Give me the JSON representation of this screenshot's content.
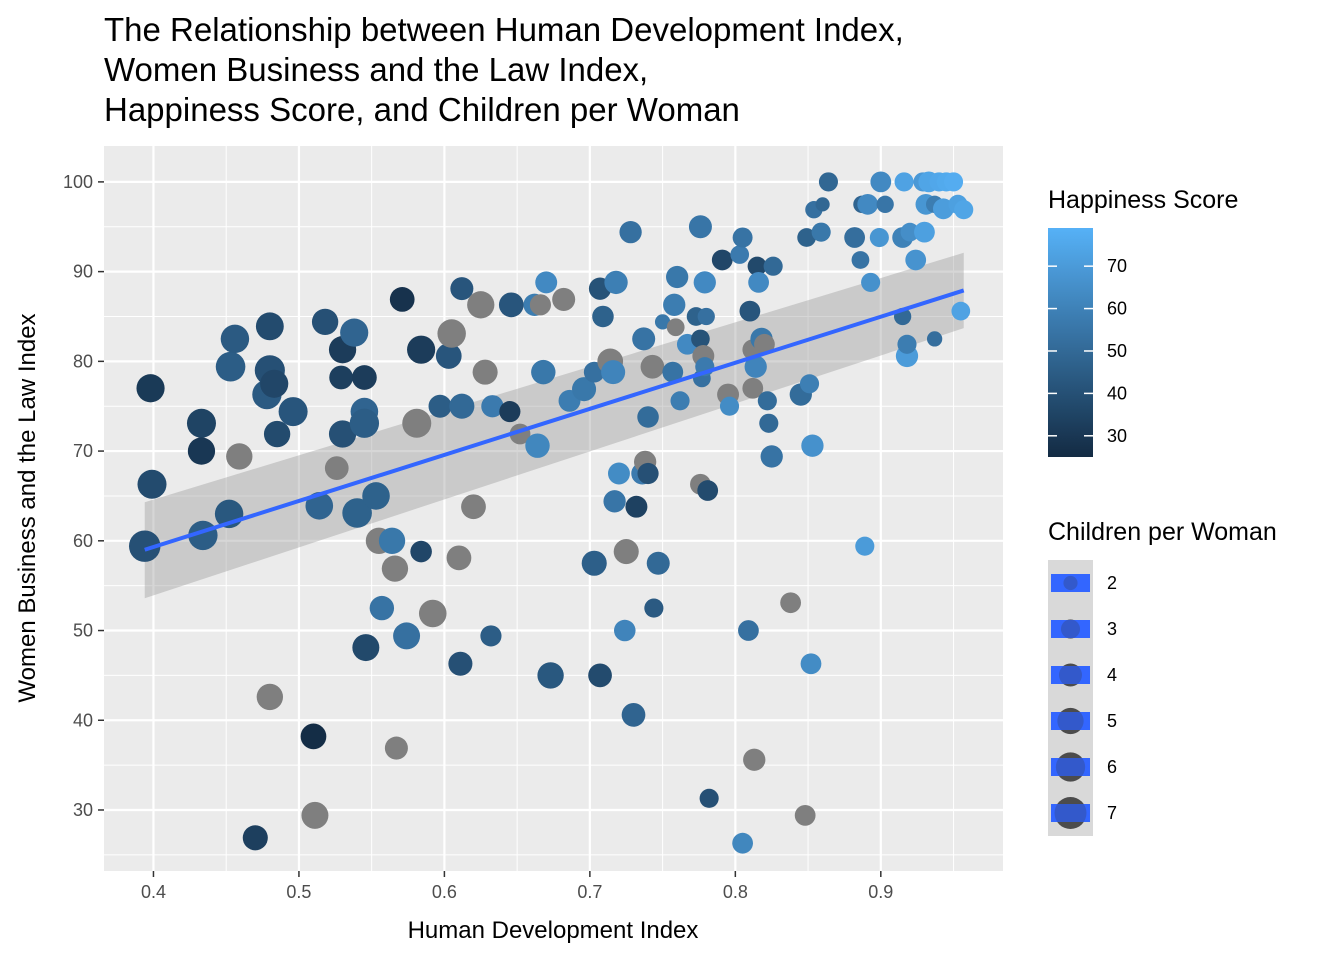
{
  "chart_data": {
    "type": "scatter",
    "title_lines": [
      "The Relationship between Human Development Index,",
      "Women Business and the Law Index,",
      "Happiness Score, and Children per Woman"
    ],
    "xlabel": "Human Development Index",
    "ylabel": "Women Business and the Law Index",
    "xlim": [
      0.366,
      0.984
    ],
    "ylim": [
      23.2,
      104.0
    ],
    "x_ticks": [
      0.4,
      0.5,
      0.6,
      0.7,
      0.8,
      0.9
    ],
    "x_tick_labels": [
      "0.4",
      "0.5",
      "0.6",
      "0.7",
      "0.8",
      "0.9"
    ],
    "y_ticks": [
      30,
      40,
      50,
      60,
      70,
      80,
      90,
      100
    ],
    "y_tick_labels": [
      "30",
      "40",
      "50",
      "60",
      "70",
      "80",
      "90",
      "100"
    ],
    "grid": true,
    "panel_background": "#ebebeb",
    "missing_color": "#7f7f7f",
    "color_scale": {
      "title": "Happiness Score",
      "low": "#132b43",
      "high": "#56b1f7",
      "limits": [
        25,
        79
      ],
      "breaks": [
        30,
        40,
        50,
        60,
        70
      ],
      "break_labels": [
        "30",
        "40",
        "50",
        "60",
        "70"
      ]
    },
    "size_scale": {
      "title": "Children per Woman",
      "limits": [
        1.0,
        7.0
      ],
      "breaks": [
        2,
        3,
        4,
        5,
        6,
        7
      ],
      "break_labels": [
        "2",
        "3",
        "4",
        "5",
        "6",
        "7"
      ]
    },
    "trend_line": {
      "x": [
        0.394,
        0.957
      ],
      "y": [
        59.0,
        87.9
      ],
      "ci_lower": [
        53.6,
        83.7
      ],
      "ci_upper": [
        64.3,
        92.1
      ],
      "color": "#3366ff",
      "band_color": "#999999"
    },
    "points": [
      {
        "x": 0.394,
        "y": 59.4,
        "size": 6.8,
        "happiness": 40
      },
      {
        "x": 0.398,
        "y": 77.0,
        "size": 5.6,
        "happiness": 31
      },
      {
        "x": 0.399,
        "y": 66.3,
        "size": 5.9,
        "happiness": 38
      },
      {
        "x": 0.433,
        "y": 73.1,
        "size": 5.9,
        "happiness": 35
      },
      {
        "x": 0.433,
        "y": 70.0,
        "size": 5.3,
        "happiness": 30
      },
      {
        "x": 0.434,
        "y": 60.6,
        "size": 6.0,
        "happiness": 45
      },
      {
        "x": 0.452,
        "y": 63.0,
        "size": 5.7,
        "happiness": 43
      },
      {
        "x": 0.453,
        "y": 79.4,
        "size": 6.1,
        "happiness": 45
      },
      {
        "x": 0.456,
        "y": 82.5,
        "size": 5.7,
        "happiness": 44
      },
      {
        "x": 0.459,
        "y": 69.4,
        "size": 5.0,
        "happiness": null
      },
      {
        "x": 0.478,
        "y": 76.3,
        "size": 6.0,
        "happiness": 44
      },
      {
        "x": 0.48,
        "y": 79.0,
        "size": 6.3,
        "happiness": 40
      },
      {
        "x": 0.48,
        "y": 83.9,
        "size": 5.5,
        "happiness": 38
      },
      {
        "x": 0.48,
        "y": 42.6,
        "size": 5.0,
        "happiness": null
      },
      {
        "x": 0.483,
        "y": 77.5,
        "size": 5.6,
        "happiness": 36
      },
      {
        "x": 0.485,
        "y": 71.9,
        "size": 5.0,
        "happiness": 38
      },
      {
        "x": 0.496,
        "y": 74.4,
        "size": 5.9,
        "happiness": 42
      },
      {
        "x": 0.47,
        "y": 26.9,
        "size": 4.6,
        "happiness": 33
      },
      {
        "x": 0.51,
        "y": 38.2,
        "size": 4.8,
        "happiness": 26
      },
      {
        "x": 0.511,
        "y": 29.4,
        "size": 5.2,
        "happiness": null
      },
      {
        "x": 0.514,
        "y": 63.9,
        "size": 5.4,
        "happiness": 48
      },
      {
        "x": 0.518,
        "y": 84.4,
        "size": 5.0,
        "happiness": 40
      },
      {
        "x": 0.526,
        "y": 68.1,
        "size": 4.2,
        "happiness": null
      },
      {
        "x": 0.53,
        "y": 81.3,
        "size": 5.3,
        "happiness": 32
      },
      {
        "x": 0.529,
        "y": 78.2,
        "size": 4.2,
        "happiness": 33
      },
      {
        "x": 0.53,
        "y": 71.9,
        "size": 5.3,
        "happiness": 40
      },
      {
        "x": 0.538,
        "y": 83.2,
        "size": 5.6,
        "happiness": 48
      },
      {
        "x": 0.54,
        "y": 63.1,
        "size": 6.1,
        "happiness": 47
      },
      {
        "x": 0.545,
        "y": 78.2,
        "size": 4.5,
        "happiness": 32
      },
      {
        "x": 0.545,
        "y": 74.4,
        "size": 5.4,
        "happiness": 48
      },
      {
        "x": 0.545,
        "y": 73.1,
        "size": 6.0,
        "happiness": 45
      },
      {
        "x": 0.546,
        "y": 48.1,
        "size": 5.2,
        "happiness": 37
      },
      {
        "x": 0.553,
        "y": 65.0,
        "size": 5.4,
        "happiness": 47
      },
      {
        "x": 0.555,
        "y": 60.0,
        "size": 5.0,
        "happiness": null
      },
      {
        "x": 0.557,
        "y": 52.5,
        "size": 4.4,
        "happiness": 54
      },
      {
        "x": 0.564,
        "y": 60.0,
        "size": 5.0,
        "happiness": 56
      },
      {
        "x": 0.566,
        "y": 56.9,
        "size": 5.0,
        "happiness": null
      },
      {
        "x": 0.567,
        "y": 36.9,
        "size": 4.0,
        "happiness": null
      },
      {
        "x": 0.571,
        "y": 86.9,
        "size": 4.5,
        "happiness": 28
      },
      {
        "x": 0.574,
        "y": 49.4,
        "size": 5.2,
        "happiness": 53
      },
      {
        "x": 0.581,
        "y": 73.1,
        "size": 5.9,
        "happiness": null
      },
      {
        "x": 0.584,
        "y": 81.3,
        "size": 5.6,
        "happiness": 32
      },
      {
        "x": 0.584,
        "y": 58.8,
        "size": 3.6,
        "happiness": 36
      },
      {
        "x": 0.592,
        "y": 51.9,
        "size": 5.4,
        "happiness": null
      },
      {
        "x": 0.597,
        "y": 75.0,
        "size": 4.0,
        "happiness": 45
      },
      {
        "x": 0.603,
        "y": 80.6,
        "size": 4.8,
        "happiness": 42
      },
      {
        "x": 0.605,
        "y": 83.1,
        "size": 5.7,
        "happiness": null
      },
      {
        "x": 0.61,
        "y": 58.1,
        "size": 4.5,
        "happiness": null
      },
      {
        "x": 0.611,
        "y": 46.3,
        "size": 4.3,
        "happiness": 40
      },
      {
        "x": 0.612,
        "y": 75.0,
        "size": 4.6,
        "happiness": 50
      },
      {
        "x": 0.612,
        "y": 88.1,
        "size": 4.0,
        "happiness": 42
      },
      {
        "x": 0.62,
        "y": 63.8,
        "size": 4.5,
        "happiness": null
      },
      {
        "x": 0.625,
        "y": 86.3,
        "size": 5.3,
        "happiness": null
      },
      {
        "x": 0.628,
        "y": 78.8,
        "size": 4.6,
        "happiness": null
      },
      {
        "x": 0.632,
        "y": 49.4,
        "size": 3.5,
        "happiness": 45
      },
      {
        "x": 0.633,
        "y": 75.0,
        "size": 3.8,
        "happiness": 57
      },
      {
        "x": 0.645,
        "y": 74.4,
        "size": 3.5,
        "happiness": 32
      },
      {
        "x": 0.646,
        "y": 86.3,
        "size": 4.5,
        "happiness": 42
      },
      {
        "x": 0.652,
        "y": 71.9,
        "size": 3.4,
        "happiness": null
      },
      {
        "x": 0.662,
        "y": 86.3,
        "size": 3.8,
        "happiness": 58
      },
      {
        "x": 0.664,
        "y": 70.6,
        "size": 4.4,
        "happiness": 62
      },
      {
        "x": 0.666,
        "y": 86.3,
        "size": 3.5,
        "happiness": null
      },
      {
        "x": 0.668,
        "y": 78.8,
        "size": 4.4,
        "happiness": 56
      },
      {
        "x": 0.67,
        "y": 88.8,
        "size": 3.7,
        "happiness": 63
      },
      {
        "x": 0.673,
        "y": 45.0,
        "size": 5.0,
        "happiness": 43
      },
      {
        "x": 0.682,
        "y": 86.9,
        "size": 4.0,
        "happiness": null
      },
      {
        "x": 0.686,
        "y": 75.6,
        "size": 3.7,
        "happiness": 58
      },
      {
        "x": 0.696,
        "y": 76.9,
        "size": 4.3,
        "happiness": 56
      },
      {
        "x": 0.703,
        "y": 57.5,
        "size": 4.6,
        "happiness": 46
      },
      {
        "x": 0.703,
        "y": 78.8,
        "size": 3.4,
        "happiness": 53
      },
      {
        "x": 0.707,
        "y": 45.0,
        "size": 4.2,
        "happiness": 38
      },
      {
        "x": 0.707,
        "y": 88.1,
        "size": 3.8,
        "happiness": 41
      },
      {
        "x": 0.709,
        "y": 85.0,
        "size": 3.6,
        "happiness": 47
      },
      {
        "x": 0.714,
        "y": 80.0,
        "size": 4.8,
        "happiness": null
      },
      {
        "x": 0.716,
        "y": 78.8,
        "size": 4.3,
        "happiness": 61
      },
      {
        "x": 0.718,
        "y": 88.8,
        "size": 4.1,
        "happiness": 59
      },
      {
        "x": 0.717,
        "y": 64.4,
        "size": 3.8,
        "happiness": 55
      },
      {
        "x": 0.72,
        "y": 67.5,
        "size": 3.7,
        "happiness": 64
      },
      {
        "x": 0.724,
        "y": 50.0,
        "size": 3.6,
        "happiness": 61
      },
      {
        "x": 0.725,
        "y": 58.8,
        "size": 4.6,
        "happiness": null
      },
      {
        "x": 0.728,
        "y": 94.4,
        "size": 3.8,
        "happiness": 53
      },
      {
        "x": 0.73,
        "y": 40.6,
        "size": 4.2,
        "happiness": 48
      },
      {
        "x": 0.732,
        "y": 63.8,
        "size": 3.7,
        "happiness": 34
      },
      {
        "x": 0.736,
        "y": 67.5,
        "size": 3.7,
        "happiness": 57
      },
      {
        "x": 0.737,
        "y": 82.5,
        "size": 4.0,
        "happiness": 54
      },
      {
        "x": 0.738,
        "y": 68.8,
        "size": 3.8,
        "happiness": null
      },
      {
        "x": 0.74,
        "y": 73.8,
        "size": 3.6,
        "happiness": 51
      },
      {
        "x": 0.74,
        "y": 67.5,
        "size": 3.5,
        "happiness": 40
      },
      {
        "x": 0.743,
        "y": 79.4,
        "size": 4.2,
        "happiness": null
      },
      {
        "x": 0.744,
        "y": 52.5,
        "size": 3.0,
        "happiness": 44
      },
      {
        "x": 0.747,
        "y": 57.5,
        "size": 4.0,
        "happiness": 50
      },
      {
        "x": 0.75,
        "y": 84.4,
        "size": 2.2,
        "happiness": 56
      },
      {
        "x": 0.757,
        "y": 78.8,
        "size": 3.4,
        "happiness": 54
      },
      {
        "x": 0.758,
        "y": 86.3,
        "size": 3.8,
        "happiness": 58
      },
      {
        "x": 0.759,
        "y": 83.8,
        "size": 2.7,
        "happiness": null
      },
      {
        "x": 0.76,
        "y": 89.4,
        "size": 3.8,
        "happiness": 56
      },
      {
        "x": 0.762,
        "y": 75.6,
        "size": 3.0,
        "happiness": 58
      },
      {
        "x": 0.767,
        "y": 81.9,
        "size": 3.4,
        "happiness": 63
      },
      {
        "x": 0.773,
        "y": 85.0,
        "size": 2.9,
        "happiness": 47
      },
      {
        "x": 0.776,
        "y": 95.0,
        "size": 4.0,
        "happiness": 55
      },
      {
        "x": 0.776,
        "y": 82.5,
        "size": 2.9,
        "happiness": 41
      },
      {
        "x": 0.776,
        "y": 66.3,
        "size": 3.4,
        "happiness": null
      },
      {
        "x": 0.777,
        "y": 78.1,
        "size": 2.7,
        "happiness": 53
      },
      {
        "x": 0.778,
        "y": 80.6,
        "size": 3.7,
        "happiness": null
      },
      {
        "x": 0.779,
        "y": 88.8,
        "size": 3.8,
        "happiness": 63
      },
      {
        "x": 0.779,
        "y": 79.4,
        "size": 3.0,
        "happiness": 57
      },
      {
        "x": 0.78,
        "y": 85.0,
        "size": 2.6,
        "happiness": 53
      },
      {
        "x": 0.781,
        "y": 65.6,
        "size": 3.4,
        "happiness": 38
      },
      {
        "x": 0.782,
        "y": 31.3,
        "size": 3.0,
        "happiness": 40
      },
      {
        "x": 0.791,
        "y": 91.3,
        "size": 3.4,
        "happiness": 36
      },
      {
        "x": 0.795,
        "y": 76.3,
        "size": 3.7,
        "happiness": null
      },
      {
        "x": 0.796,
        "y": 75.0,
        "size": 3.0,
        "happiness": 64
      },
      {
        "x": 0.803,
        "y": 91.9,
        "size": 2.9,
        "happiness": 57
      },
      {
        "x": 0.805,
        "y": 93.8,
        "size": 3.2,
        "happiness": 54
      },
      {
        "x": 0.805,
        "y": 26.3,
        "size": 3.4,
        "happiness": 62
      },
      {
        "x": 0.809,
        "y": 50.0,
        "size": 3.4,
        "happiness": 53
      },
      {
        "x": 0.81,
        "y": 85.6,
        "size": 3.4,
        "happiness": 42
      },
      {
        "x": 0.812,
        "y": 77.0,
        "size": 3.4,
        "happiness": null
      },
      {
        "x": 0.812,
        "y": 81.3,
        "size": 3.4,
        "happiness": null
      },
      {
        "x": 0.813,
        "y": 35.6,
        "size": 3.8,
        "happiness": null
      },
      {
        "x": 0.814,
        "y": 79.4,
        "size": 3.8,
        "happiness": 61
      },
      {
        "x": 0.815,
        "y": 90.6,
        "size": 3.0,
        "happiness": 37
      },
      {
        "x": 0.816,
        "y": 88.8,
        "size": 3.4,
        "happiness": 63
      },
      {
        "x": 0.818,
        "y": 82.5,
        "size": 3.8,
        "happiness": 56
      },
      {
        "x": 0.82,
        "y": 81.9,
        "size": 3.4,
        "happiness": null
      },
      {
        "x": 0.822,
        "y": 75.6,
        "size": 3.0,
        "happiness": 51
      },
      {
        "x": 0.823,
        "y": 73.1,
        "size": 3.0,
        "happiness": 50
      },
      {
        "x": 0.825,
        "y": 69.4,
        "size": 3.8,
        "happiness": 54
      },
      {
        "x": 0.826,
        "y": 90.6,
        "size": 3.0,
        "happiness": 50
      },
      {
        "x": 0.838,
        "y": 53.1,
        "size": 3.4,
        "happiness": null
      },
      {
        "x": 0.845,
        "y": 76.3,
        "size": 3.8,
        "happiness": 51
      },
      {
        "x": 0.848,
        "y": 29.4,
        "size": 3.4,
        "happiness": null
      },
      {
        "x": 0.849,
        "y": 93.8,
        "size": 2.9,
        "happiness": 47
      },
      {
        "x": 0.851,
        "y": 77.5,
        "size": 3.0,
        "happiness": 59
      },
      {
        "x": 0.852,
        "y": 46.3,
        "size": 3.4,
        "happiness": 64
      },
      {
        "x": 0.853,
        "y": 70.6,
        "size": 3.8,
        "happiness": 66
      },
      {
        "x": 0.854,
        "y": 96.9,
        "size": 2.6,
        "happiness": 53
      },
      {
        "x": 0.859,
        "y": 94.4,
        "size": 3.0,
        "happiness": 56
      },
      {
        "x": 0.86,
        "y": 97.5,
        "size": 2.0,
        "happiness": 49
      },
      {
        "x": 0.864,
        "y": 100.0,
        "size": 3.0,
        "happiness": 49
      },
      {
        "x": 0.882,
        "y": 93.8,
        "size": 3.4,
        "happiness": 52
      },
      {
        "x": 0.886,
        "y": 91.3,
        "size": 2.7,
        "happiness": 54
      },
      {
        "x": 0.887,
        "y": 97.5,
        "size": 2.6,
        "happiness": 48
      },
      {
        "x": 0.889,
        "y": 59.4,
        "size": 3.0,
        "happiness": 70
      },
      {
        "x": 0.891,
        "y": 97.5,
        "size": 3.4,
        "happiness": 63
      },
      {
        "x": 0.893,
        "y": 88.8,
        "size": 3.0,
        "happiness": 66
      },
      {
        "x": 0.899,
        "y": 93.8,
        "size": 3.0,
        "happiness": 68
      },
      {
        "x": 0.9,
        "y": 100.0,
        "size": 3.4,
        "happiness": 63
      },
      {
        "x": 0.903,
        "y": 97.5,
        "size": 2.6,
        "happiness": 55
      },
      {
        "x": 0.915,
        "y": 85.0,
        "size": 2.6,
        "happiness": 50
      },
      {
        "x": 0.915,
        "y": 93.8,
        "size": 3.4,
        "happiness": 60
      },
      {
        "x": 0.916,
        "y": 100.0,
        "size": 3.0,
        "happiness": 73
      },
      {
        "x": 0.918,
        "y": 80.6,
        "size": 3.8,
        "happiness": 70
      },
      {
        "x": 0.918,
        "y": 81.9,
        "size": 3.0,
        "happiness": 58
      },
      {
        "x": 0.92,
        "y": 94.4,
        "size": 2.9,
        "happiness": 65
      },
      {
        "x": 0.924,
        "y": 91.3,
        "size": 3.4,
        "happiness": 67
      },
      {
        "x": 0.929,
        "y": 100.0,
        "size": 3.0,
        "happiness": 69
      },
      {
        "x": 0.93,
        "y": 94.4,
        "size": 3.4,
        "happiness": 72
      },
      {
        "x": 0.931,
        "y": 97.5,
        "size": 3.4,
        "happiness": 68
      },
      {
        "x": 0.933,
        "y": 100.0,
        "size": 3.4,
        "happiness": 74
      },
      {
        "x": 0.937,
        "y": 82.5,
        "size": 2.2,
        "happiness": 52
      },
      {
        "x": 0.937,
        "y": 97.5,
        "size": 2.6,
        "happiness": 58
      },
      {
        "x": 0.94,
        "y": 100.0,
        "size": 3.0,
        "happiness": 75
      },
      {
        "x": 0.943,
        "y": 97.0,
        "size": 3.4,
        "happiness": 71
      },
      {
        "x": 0.945,
        "y": 100.0,
        "size": 3.0,
        "happiness": 76
      },
      {
        "x": 0.95,
        "y": 100.0,
        "size": 3.0,
        "happiness": 77
      },
      {
        "x": 0.953,
        "y": 97.5,
        "size": 3.0,
        "happiness": 72
      },
      {
        "x": 0.955,
        "y": 85.6,
        "size": 2.9,
        "happiness": 73
      },
      {
        "x": 0.957,
        "y": 96.9,
        "size": 3.0,
        "happiness": 74
      }
    ]
  }
}
